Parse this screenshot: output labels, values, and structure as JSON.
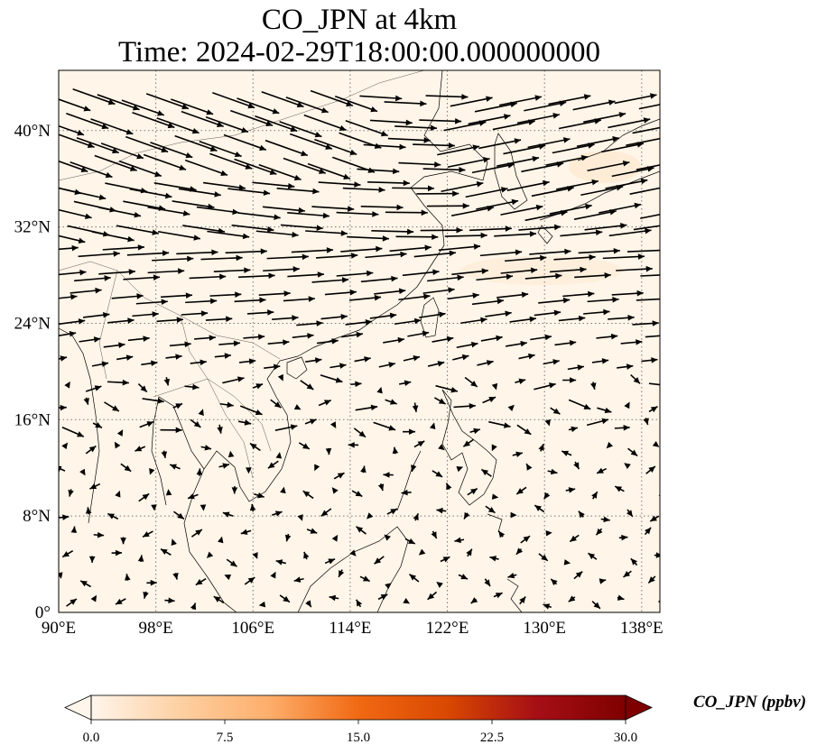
{
  "title": {
    "line1": "CO_JPN at 4km",
    "line2": "Time: 2024-02-29T18:00:00.000000000"
  },
  "map": {
    "lon_range": [
      90,
      139.5
    ],
    "lat_range": [
      0,
      45
    ],
    "background_color": "#fff5e8",
    "x_ticks": [
      {
        "value": 90,
        "label": "90°E"
      },
      {
        "value": 98,
        "label": "98°E"
      },
      {
        "value": 106,
        "label": "106°E"
      },
      {
        "value": 114,
        "label": "114°E"
      },
      {
        "value": 122,
        "label": "122°E"
      },
      {
        "value": 130,
        "label": "130°E"
      },
      {
        "value": 138,
        "label": "138°E"
      }
    ],
    "y_ticks": [
      {
        "value": 0,
        "label": "0°"
      },
      {
        "value": 8,
        "label": "8°N"
      },
      {
        "value": 16,
        "label": "16°N"
      },
      {
        "value": 24,
        "label": "24°N"
      },
      {
        "value": 32,
        "label": "32°N"
      },
      {
        "value": 40,
        "label": "40°N"
      }
    ],
    "gridlines": true,
    "gridline_style": "dotted",
    "wind_vectors": "black arrows, strong westerlies north of ~20°N, weak and variable to the south"
  },
  "colorbar": {
    "label": "CO_JPN (ppbv)",
    "ticks": [
      "0.0",
      "7.5",
      "15.0",
      "22.5",
      "30.0"
    ],
    "colors": [
      "#fff5eb",
      "#fdd0a2",
      "#fdae6b",
      "#f16913",
      "#d94801",
      "#a50f15",
      "#7f0000"
    ],
    "extend": "both"
  }
}
